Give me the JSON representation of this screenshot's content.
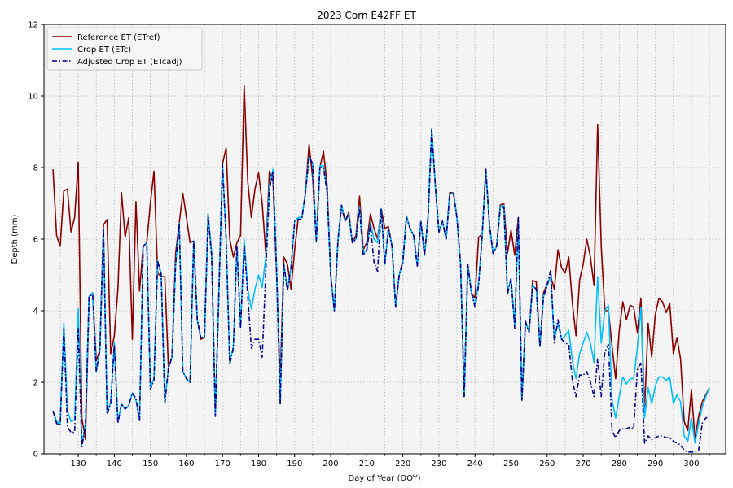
{
  "chart_data": {
    "type": "line",
    "title": "2023 Corn E42FF ET",
    "xlabel": "Day of Year (DOY)",
    "ylabel": "Depth (mm)",
    "xlim": [
      120.5,
      309.5
    ],
    "ylim": [
      0,
      12
    ],
    "xticks": [
      130,
      140,
      150,
      160,
      170,
      180,
      190,
      200,
      210,
      220,
      230,
      240,
      250,
      260,
      270,
      280,
      290,
      300
    ],
    "yticks": [
      0,
      2,
      4,
      6,
      8,
      10,
      12
    ],
    "grid": true,
    "legend_position": "top-left",
    "x_start": 123,
    "series": [
      {
        "name": "Reference ET (ETref)",
        "color": "#8b0000",
        "style": "solid",
        "values": [
          7.95,
          6.1,
          5.8,
          7.35,
          7.4,
          6.2,
          6.6,
          8.15,
          1.0,
          0.4,
          4.4,
          4.5,
          2.6,
          2.9,
          6.4,
          6.55,
          2.8,
          3.3,
          4.6,
          7.3,
          6.05,
          6.6,
          3.2,
          7.05,
          4.55,
          5.8,
          5.9,
          7.0,
          7.9,
          5.05,
          4.95,
          4.95,
          2.4,
          2.7,
          5.6,
          6.45,
          7.28,
          6.6,
          5.9,
          5.95,
          3.75,
          3.2,
          3.25,
          6.7,
          5.6,
          1.1,
          4.55,
          8.1,
          8.55,
          6.0,
          5.5,
          5.9,
          6.1,
          10.3,
          7.6,
          6.6,
          7.4,
          7.85,
          7.0,
          5.6,
          7.9,
          7.6,
          5.0,
          2.0,
          5.5,
          5.3,
          4.6,
          5.7,
          6.6,
          6.6,
          7.3,
          8.65,
          7.7,
          5.95,
          8.0,
          8.45,
          7.5,
          5.0,
          4.0,
          5.95,
          6.9,
          6.5,
          6.75,
          5.9,
          6.1,
          7.2,
          5.7,
          5.9,
          6.7,
          6.3,
          6.0,
          6.85,
          6.3,
          6.35,
          5.8,
          4.1,
          5.0,
          5.4,
          6.65,
          6.3,
          6.1,
          5.25,
          6.5,
          5.55,
          6.65,
          9.05,
          7.5,
          6.2,
          6.5,
          6.0,
          7.3,
          7.3,
          6.6,
          5.3,
          1.6,
          5.3,
          4.5,
          4.35,
          6.05,
          6.15,
          7.95,
          6.4,
          5.6,
          5.8,
          6.95,
          7.0,
          5.6,
          6.25,
          5.55,
          6.6,
          1.5,
          3.7,
          3.4,
          4.85,
          4.8,
          3.0,
          4.5,
          4.75,
          4.95,
          4.6,
          5.7,
          5.2,
          5.05,
          5.5,
          4.2,
          3.3,
          4.85,
          5.3,
          6.0,
          5.5,
          4.7,
          9.2,
          5.8,
          4.0,
          4.0,
          3.0,
          2.1,
          3.45,
          4.25,
          3.75,
          4.15,
          4.1,
          3.4,
          4.35,
          1.2,
          3.65,
          2.7,
          3.9,
          4.35,
          4.25,
          3.95,
          4.2,
          2.8,
          3.25,
          2.65,
          0.9,
          0.65,
          1.8,
          0.4,
          1.05,
          1.45,
          1.65,
          1.85
        ]
      },
      {
        "name": "Crop ET (ETc)",
        "color": "#00bfff",
        "style": "solid",
        "values": [
          1.2,
          0.9,
          0.85,
          3.65,
          1.2,
          0.9,
          0.95,
          4.05,
          0.25,
          0.85,
          4.4,
          4.5,
          2.3,
          2.9,
          6.3,
          1.15,
          1.45,
          3.1,
          0.9,
          1.4,
          1.25,
          1.35,
          1.7,
          1.5,
          0.95,
          5.8,
          5.9,
          1.85,
          2.1,
          5.4,
          5.05,
          1.45,
          2.4,
          2.7,
          5.3,
          6.45,
          2.3,
          2.1,
          2.0,
          5.95,
          3.75,
          3.25,
          3.25,
          6.7,
          5.6,
          1.05,
          4.55,
          8.1,
          6.0,
          2.55,
          3.0,
          5.8,
          3.55,
          6.0,
          4.6,
          4.05,
          4.6,
          5.0,
          4.65,
          5.5,
          7.5,
          7.95,
          5.2,
          1.4,
          5.3,
          4.6,
          5.2,
          6.5,
          6.6,
          6.6,
          7.3,
          8.3,
          8.1,
          5.95,
          8.05,
          8.05,
          7.3,
          5.0,
          4.0,
          5.95,
          6.95,
          6.5,
          6.7,
          5.9,
          6.0,
          6.9,
          5.6,
          5.7,
          6.45,
          6.0,
          5.9,
          6.85,
          5.3,
          6.3,
          5.8,
          4.1,
          5.0,
          5.35,
          6.65,
          6.3,
          6.1,
          5.25,
          6.5,
          5.55,
          6.6,
          9.1,
          7.5,
          6.2,
          6.5,
          6.0,
          7.25,
          7.3,
          6.6,
          5.3,
          1.6,
          5.3,
          4.5,
          4.2,
          4.8,
          6.1,
          7.95,
          6.4,
          5.6,
          5.8,
          6.9,
          6.95,
          4.5,
          4.9,
          3.6,
          6.5,
          1.5,
          3.7,
          3.4,
          4.7,
          4.6,
          3.0,
          4.4,
          4.7,
          4.95,
          3.2,
          3.65,
          3.2,
          3.3,
          3.45,
          2.6,
          2.1,
          2.8,
          3.1,
          3.4,
          3.1,
          2.55,
          4.95,
          3.1,
          4.0,
          4.15,
          1.5,
          1.0,
          1.6,
          2.15,
          1.95,
          2.1,
          2.1,
          2.95,
          4.1,
          1.0,
          1.85,
          1.4,
          1.9,
          2.15,
          2.15,
          2.05,
          2.15,
          1.4,
          1.65,
          1.45,
          0.5,
          0.35,
          1.0,
          0.3,
          0.85,
          1.3,
          1.6,
          1.85
        ]
      },
      {
        "name": "Adjusted Crop ET (ETcadj)",
        "color": "#00008b",
        "style": "dashdot",
        "values": [
          1.2,
          0.85,
          0.8,
          3.5,
          0.75,
          0.6,
          0.6,
          3.5,
          0.2,
          0.8,
          4.4,
          4.45,
          2.3,
          2.9,
          6.3,
          1.1,
          1.4,
          3.05,
          0.85,
          1.4,
          1.25,
          1.35,
          1.7,
          1.55,
          0.9,
          5.8,
          5.9,
          1.8,
          2.05,
          5.4,
          5.0,
          1.4,
          2.4,
          2.7,
          5.3,
          6.45,
          2.3,
          2.1,
          2.0,
          5.95,
          3.75,
          3.25,
          3.25,
          6.65,
          5.5,
          1.05,
          4.5,
          8.1,
          6.0,
          2.5,
          2.95,
          5.8,
          3.5,
          5.85,
          4.4,
          2.95,
          3.2,
          3.2,
          2.7,
          5.1,
          7.4,
          7.9,
          5.1,
          1.4,
          5.3,
          4.55,
          5.2,
          6.5,
          6.55,
          6.55,
          7.3,
          8.3,
          8.1,
          5.95,
          8.0,
          8.0,
          7.3,
          5.0,
          4.0,
          5.95,
          6.95,
          6.5,
          6.7,
          5.9,
          6.0,
          6.85,
          5.55,
          5.7,
          6.4,
          5.35,
          5.1,
          6.85,
          5.3,
          6.3,
          5.8,
          4.1,
          5.0,
          5.35,
          6.6,
          6.3,
          6.1,
          5.25,
          6.5,
          5.55,
          6.6,
          9.05,
          7.5,
          6.2,
          6.5,
          6.0,
          7.25,
          7.3,
          6.6,
          5.3,
          1.6,
          5.3,
          4.5,
          4.1,
          4.7,
          6.1,
          7.95,
          6.4,
          5.6,
          5.8,
          6.85,
          6.9,
          4.45,
          4.9,
          3.5,
          6.6,
          1.5,
          3.7,
          3.4,
          4.7,
          4.6,
          3.0,
          4.4,
          4.7,
          5.15,
          3.1,
          3.75,
          3.2,
          3.1,
          3.05,
          2.05,
          1.6,
          2.2,
          2.2,
          2.3,
          2.0,
          1.6,
          2.65,
          1.6,
          2.85,
          3.05,
          0.65,
          0.45,
          0.65,
          0.7,
          0.7,
          0.75,
          0.7,
          2.35,
          2.55,
          0.3,
          0.5,
          0.4,
          0.45,
          0.5,
          0.5,
          0.45,
          0.45,
          0.35,
          0.3,
          0.25,
          0.1,
          0.05,
          0.05,
          0.05,
          0.1,
          0.85,
          1.0,
          1.05
        ]
      }
    ]
  }
}
